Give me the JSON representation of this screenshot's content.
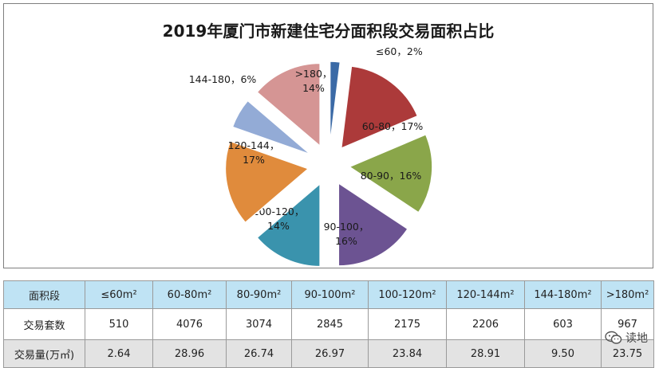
{
  "chart_data": {
    "type": "pie",
    "title": "2019年厦门市新建住宅分面积段交易面积占比",
    "slices": [
      {
        "label": "≤60，2%",
        "share": 2,
        "color": "#3b6aa6"
      },
      {
        "label": "60-80，17%",
        "share": 17,
        "color": "#ac3a3a"
      },
      {
        "label": "80-90，16%",
        "share": 16,
        "color": "#8aa64a"
      },
      {
        "label": "90-100，16%",
        "share": 16,
        "color": "#6c5392"
      },
      {
        "label": "100-120，14%",
        "share": 14,
        "color": "#3a93ad"
      },
      {
        "label": "120-144，17%",
        "share": 17,
        "color": "#e08b3c"
      },
      {
        "label": "144-180，6%",
        "share": 6,
        "color": "#93abd6"
      },
      {
        "label": ">180，14%",
        "share": 14,
        "color": "#d59594"
      }
    ]
  },
  "table": {
    "header": [
      "面积段",
      "≤60m²",
      "60-80m²",
      "80-90m²",
      "90-100m²",
      "100-120m²",
      "120-144m²",
      "144-180m²",
      ">180m²"
    ],
    "rows": [
      [
        "交易套数",
        "510",
        "4076",
        "3074",
        "2845",
        "2175",
        "2206",
        "603",
        "967"
      ],
      [
        "交易量(万㎡)",
        "2.64",
        "28.96",
        "26.74",
        "26.97",
        "23.84",
        "28.91",
        "9.50",
        "23.75"
      ]
    ]
  },
  "watermark": {
    "text": "读地",
    "icon": "wechat-icon"
  }
}
